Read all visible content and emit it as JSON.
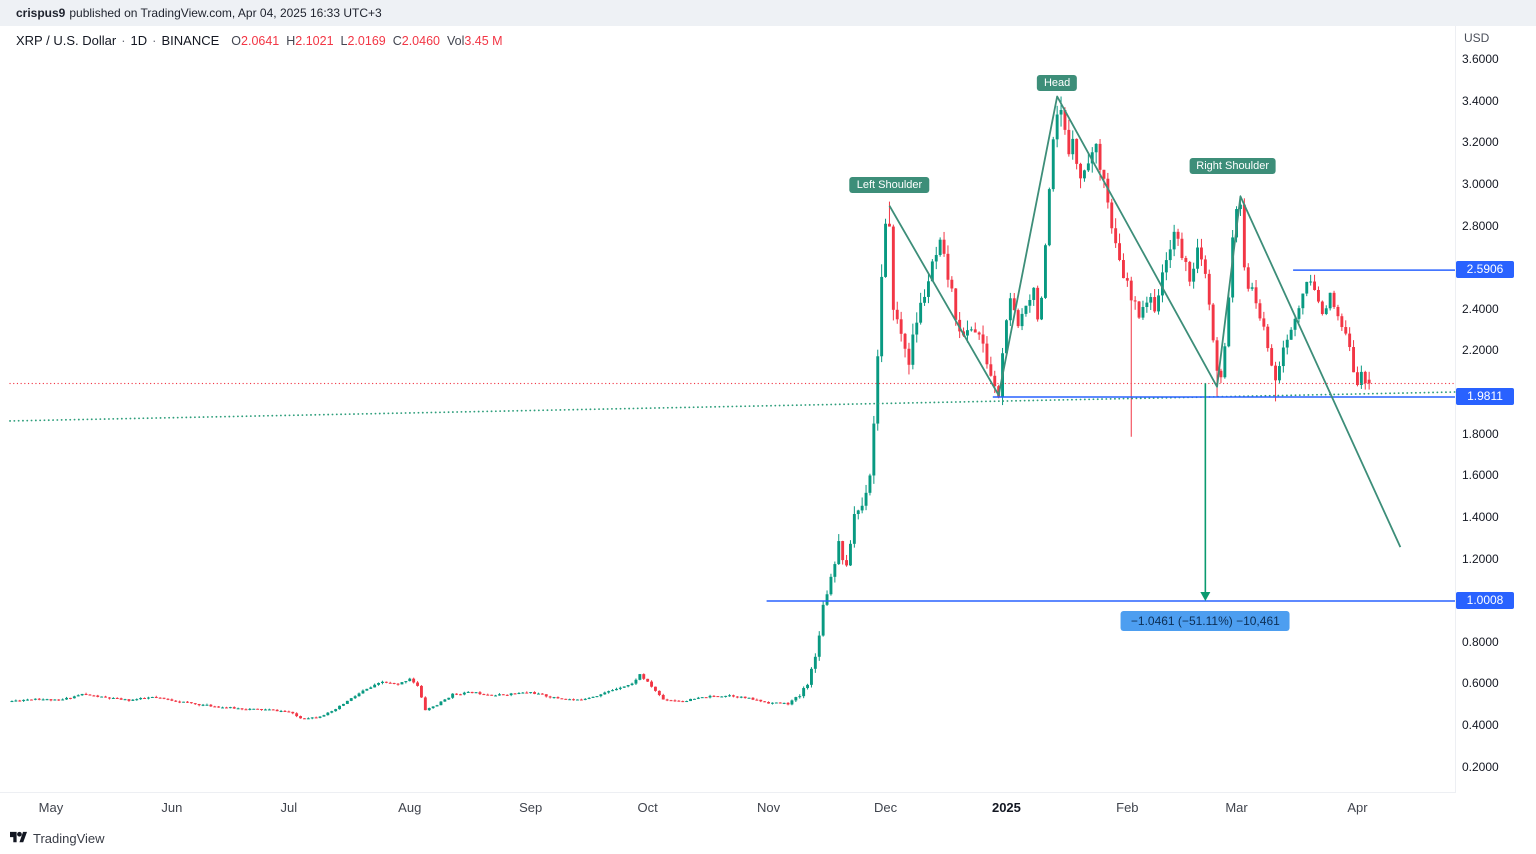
{
  "header": {
    "author": "crispus9",
    "publish_info": "published on TradingView.com, Apr 04, 2025 16:33 UTC+3"
  },
  "legend": {
    "symbol": "XRP / U.S. Dollar",
    "separator": "·",
    "interval": "1D",
    "exchange": "BINANCE",
    "ohlc": [
      {
        "label": "O",
        "value": "2.0641"
      },
      {
        "label": "H",
        "value": "2.1021"
      },
      {
        "label": "L",
        "value": "2.0169"
      },
      {
        "label": "C",
        "value": "2.0460"
      },
      {
        "label": "Vol",
        "value": "3.45 M"
      }
    ]
  },
  "axis": {
    "currency": "USD"
  },
  "footer": {
    "brand": "TradingView"
  },
  "colors": {
    "up": "#089981",
    "down": "#f23645",
    "ohlc_value": "#f23645",
    "pattern": "#3d8e79",
    "level_blue": "#2962ff",
    "badge_bg": "#2962ff",
    "measure_green": "#0a9a6e",
    "current_red": "#f23645",
    "trendline_green": "#2e9e7b",
    "measure_label_bg": "#4d9ef0",
    "measure_label_text": "#0d2f55"
  },
  "chart_data": {
    "type": "candlestick",
    "symbol": "XRP / U.S. Dollar",
    "interval": "1D",
    "exchange": "BINANCE",
    "last_bar": {
      "open": 2.0641,
      "high": 2.1021,
      "low": 2.0169,
      "close": 2.046,
      "volume": "3.45 M"
    },
    "price_axis": {
      "currency": "USD",
      "visible_range": [
        0.09,
        3.76
      ],
      "ticks": [
        3.6,
        3.4,
        3.2,
        3.0,
        2.8,
        2.4,
        2.2,
        1.8,
        1.6,
        1.4,
        1.2,
        0.8,
        0.6,
        0.4,
        0.2
      ],
      "badge_levels": [
        2.5906,
        1.9811,
        1.0008
      ]
    },
    "time_axis": {
      "days_total": 349,
      "months": [
        {
          "label": "May",
          "day": 10
        },
        {
          "label": "Jun",
          "day": 41
        },
        {
          "label": "Jul",
          "day": 71
        },
        {
          "label": "Aug",
          "day": 102
        },
        {
          "label": "Sep",
          "day": 133
        },
        {
          "label": "Oct",
          "day": 163
        },
        {
          "label": "Nov",
          "day": 194
        },
        {
          "label": "Dec",
          "day": 224
        },
        {
          "label": "2025",
          "day": 255,
          "bold": true
        },
        {
          "label": "Feb",
          "day": 286
        },
        {
          "label": "Mar",
          "day": 314
        },
        {
          "label": "Apr",
          "day": 345
        }
      ]
    },
    "series": {
      "description": "daily close anchors [day_index, close_usd]; OHLC interpolated between anchors",
      "close_anchors": [
        [
          0,
          0.52
        ],
        [
          6,
          0.532
        ],
        [
          12,
          0.522
        ],
        [
          18,
          0.553
        ],
        [
          24,
          0.536
        ],
        [
          30,
          0.524
        ],
        [
          36,
          0.538
        ],
        [
          41,
          0.524
        ],
        [
          47,
          0.506
        ],
        [
          54,
          0.49
        ],
        [
          60,
          0.482
        ],
        [
          66,
          0.478
        ],
        [
          71,
          0.468
        ],
        [
          74,
          0.438
        ],
        [
          78,
          0.442
        ],
        [
          82,
          0.468
        ],
        [
          86,
          0.52
        ],
        [
          90,
          0.568
        ],
        [
          95,
          0.612
        ],
        [
          99,
          0.598
        ],
        [
          102,
          0.63
        ],
        [
          104,
          0.592
        ],
        [
          106,
          0.478
        ],
        [
          109,
          0.502
        ],
        [
          113,
          0.552
        ],
        [
          118,
          0.562
        ],
        [
          124,
          0.548
        ],
        [
          129,
          0.556
        ],
        [
          133,
          0.562
        ],
        [
          139,
          0.536
        ],
        [
          145,
          0.524
        ],
        [
          151,
          0.552
        ],
        [
          156,
          0.588
        ],
        [
          159,
          0.602
        ],
        [
          161,
          0.648
        ],
        [
          164,
          0.59
        ],
        [
          167,
          0.528
        ],
        [
          172,
          0.52
        ],
        [
          178,
          0.54
        ],
        [
          184,
          0.548
        ],
        [
          189,
          0.532
        ],
        [
          194,
          0.512
        ],
        [
          199,
          0.508
        ],
        [
          202,
          0.545
        ],
        [
          204,
          0.61
        ],
        [
          206,
          0.73
        ],
        [
          208,
          0.98
        ],
        [
          210,
          1.12
        ],
        [
          212,
          1.28
        ],
        [
          214,
          1.15
        ],
        [
          216,
          1.42
        ],
        [
          218,
          1.46
        ],
        [
          220,
          1.62
        ],
        [
          221,
          1.85
        ],
        [
          222,
          2.2
        ],
        [
          223,
          2.55
        ],
        [
          224,
          2.78
        ],
        [
          225,
          2.8
        ],
        [
          226,
          2.4
        ],
        [
          228,
          2.28
        ],
        [
          230,
          2.16
        ],
        [
          232,
          2.35
        ],
        [
          234,
          2.48
        ],
        [
          236,
          2.6
        ],
        [
          238,
          2.7
        ],
        [
          240,
          2.56
        ],
        [
          242,
          2.38
        ],
        [
          244,
          2.26
        ],
        [
          246,
          2.32
        ],
        [
          248,
          2.28
        ],
        [
          250,
          2.15
        ],
        [
          252,
          2.02
        ],
        [
          253,
          1.99
        ],
        [
          254,
          2.18
        ],
        [
          255,
          2.36
        ],
        [
          256,
          2.43
        ],
        [
          258,
          2.32
        ],
        [
          260,
          2.44
        ],
        [
          262,
          2.5
        ],
        [
          263,
          2.38
        ],
        [
          264,
          2.46
        ],
        [
          265,
          2.68
        ],
        [
          266,
          2.95
        ],
        [
          267,
          3.18
        ],
        [
          268,
          3.31
        ],
        [
          269,
          3.36
        ],
        [
          270,
          3.24
        ],
        [
          271,
          3.16
        ],
        [
          272,
          3.26
        ],
        [
          273,
          3.12
        ],
        [
          274,
          3.02
        ],
        [
          276,
          3.13
        ],
        [
          278,
          3.17
        ],
        [
          280,
          3.05
        ],
        [
          282,
          2.78
        ],
        [
          284,
          2.62
        ],
        [
          286,
          2.52
        ],
        [
          287,
          2.44
        ],
        [
          289,
          2.39
        ],
        [
          291,
          2.45
        ],
        [
          293,
          2.42
        ],
        [
          295,
          2.55
        ],
        [
          297,
          2.72
        ],
        [
          298,
          2.78
        ],
        [
          300,
          2.66
        ],
        [
          302,
          2.56
        ],
        [
          304,
          2.68
        ],
        [
          306,
          2.56
        ],
        [
          307,
          2.42
        ],
        [
          308,
          2.24
        ],
        [
          309,
          2.1
        ],
        [
          310,
          2.06
        ],
        [
          311,
          2.22
        ],
        [
          312,
          2.48
        ],
        [
          313,
          2.76
        ],
        [
          314,
          2.86
        ],
        [
          315,
          2.88
        ],
        [
          316,
          2.62
        ],
        [
          317,
          2.52
        ],
        [
          319,
          2.44
        ],
        [
          321,
          2.3
        ],
        [
          323,
          2.15
        ],
        [
          324,
          2.08
        ],
        [
          325,
          2.14
        ],
        [
          327,
          2.26
        ],
        [
          329,
          2.35
        ],
        [
          331,
          2.48
        ],
        [
          333,
          2.54
        ],
        [
          334,
          2.48
        ],
        [
          336,
          2.4
        ],
        [
          338,
          2.46
        ],
        [
          340,
          2.35
        ],
        [
          342,
          2.28
        ],
        [
          344,
          2.12
        ],
        [
          345,
          2.06
        ],
        [
          346,
          2.11
        ],
        [
          347,
          2.03
        ],
        [
          348,
          2.046
        ]
      ],
      "volatility_anchors": [
        [
          0,
          0.022
        ],
        [
          198,
          0.022
        ],
        [
          206,
          0.07
        ],
        [
          214,
          0.06
        ],
        [
          222,
          0.05
        ],
        [
          240,
          0.042
        ],
        [
          260,
          0.036
        ],
        [
          300,
          0.034
        ],
        [
          348,
          0.03
        ]
      ],
      "overrides": {
        "225": {
          "h": 2.92,
          "c": 2.8
        },
        "226": {
          "o": 2.8,
          "c": 2.4
        },
        "253": {
          "l": 1.975
        },
        "269": {
          "h": 3.425,
          "c": 3.36
        },
        "287": {
          "l": 1.79
        },
        "309": {
          "l": 1.98
        },
        "315": {
          "h": 2.95
        },
        "324": {
          "l": 1.96
        },
        "348": {
          "o": 2.0641,
          "h": 2.1021,
          "l": 2.0169,
          "c": 2.046
        }
      }
    },
    "levels": [
      {
        "price": 2.5906,
        "from_day": 329,
        "style": "solid",
        "color": "blue"
      },
      {
        "price": 1.9811,
        "from_day": 252,
        "style": "solid",
        "color": "blue"
      },
      {
        "price": 1.0008,
        "from_day": 194,
        "style": "solid",
        "color": "blue"
      }
    ],
    "current_price_line": {
      "price": 2.046,
      "style": "dotted",
      "color": "red"
    },
    "trendline": {
      "style": "dotted",
      "color": "green",
      "from": {
        "day": 0,
        "price": 1.866
      },
      "to": {
        "day": 371,
        "price": 2.005
      }
    },
    "pattern": {
      "name": "head-and-shoulders",
      "line_points": [
        {
          "day": 225,
          "price": 2.9
        },
        {
          "day": 253,
          "price": 1.99
        },
        {
          "day": 268,
          "price": 3.425
        },
        {
          "day": 309,
          "price": 2.03
        },
        {
          "day": 315,
          "price": 2.945
        },
        {
          "day": 356,
          "price": 1.26
        }
      ],
      "labels": [
        {
          "text": "Left Shoulder",
          "day": 225,
          "price": 3.0
        },
        {
          "text": "Head",
          "day": 268,
          "price": 3.49
        },
        {
          "text": "Right Shoulder",
          "day": 313,
          "price": 3.09
        }
      ]
    },
    "measure": {
      "day": 306,
      "from_price": 2.0469,
      "to_price": 1.0008,
      "label": "−1.0461 (−51.11%) −10,461"
    }
  }
}
